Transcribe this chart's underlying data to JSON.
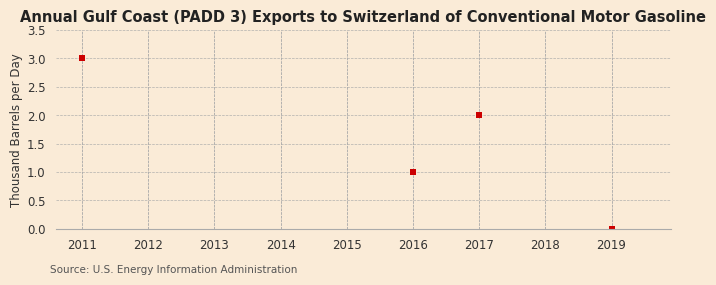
{
  "title": "Annual Gulf Coast (PADD 3) Exports to Switzerland of Conventional Motor Gasoline",
  "ylabel": "Thousand Barrels per Day",
  "source": "Source: U.S. Energy Information Administration",
  "background_color": "#faebd7",
  "plot_bg_color": "#faebd7",
  "grid_color": "#aaaaaa",
  "marker_color": "#cc0000",
  "x_data": [
    2011,
    2016,
    2017,
    2019
  ],
  "y_data": [
    3.0,
    1.0,
    2.0,
    0.0
  ],
  "x_min": 2010.6,
  "x_max": 2019.9,
  "y_min": 0.0,
  "y_max": 3.5,
  "x_ticks": [
    2011,
    2012,
    2013,
    2014,
    2015,
    2016,
    2017,
    2018,
    2019
  ],
  "y_ticks": [
    0.0,
    0.5,
    1.0,
    1.5,
    2.0,
    2.5,
    3.0,
    3.5
  ],
  "title_fontsize": 10.5,
  "label_fontsize": 8.5,
  "tick_fontsize": 8.5,
  "source_fontsize": 7.5,
  "marker_size": 4
}
